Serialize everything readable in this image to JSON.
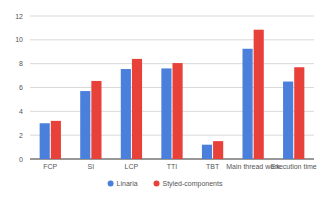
{
  "chart_data": {
    "type": "bar",
    "categories": [
      "FCP",
      "SI",
      "LCP",
      "TTI",
      "TBT",
      "Main thread work",
      "Execution time"
    ],
    "series": [
      {
        "name": "Linaria",
        "color": "#4a7fdb",
        "values": [
          3.0,
          5.7,
          7.55,
          7.6,
          1.2,
          9.25,
          6.5
        ]
      },
      {
        "name": "Styled-components",
        "color": "#e8413a",
        "values": [
          3.2,
          6.55,
          8.4,
          8.05,
          1.5,
          10.85,
          7.7
        ]
      }
    ],
    "ylim": [
      0,
      12
    ],
    "yticks": [
      0,
      2,
      4,
      6,
      8,
      10,
      12
    ],
    "grid": true,
    "legend": "bottom"
  }
}
